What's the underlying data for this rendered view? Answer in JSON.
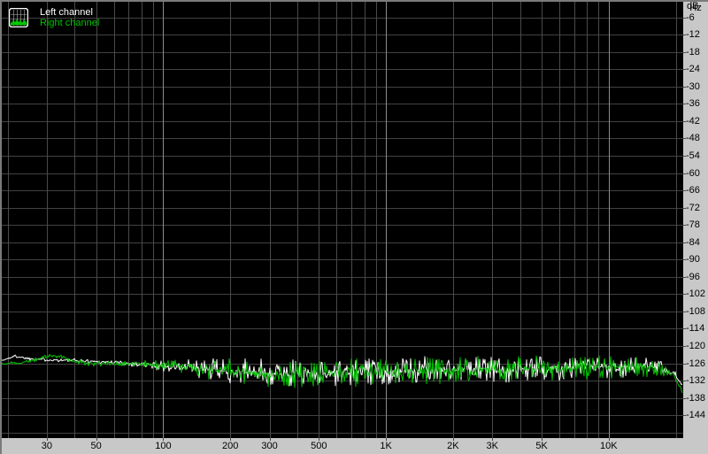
{
  "legend": {
    "items": [
      {
        "label": "Left channel",
        "color": "#ffffff"
      },
      {
        "label": "Right channel",
        "color": "#00c000"
      }
    ]
  },
  "colors": {
    "background": "#000000",
    "panel": "#c8c8c8",
    "grid_horizontal": "#424242",
    "grid_minor_vertical": "#4a4a4a",
    "grid_major_vertical": "#8c8c8c",
    "left_trace": "#ffffff",
    "right_trace": "#00c000",
    "axis_text": "#000000",
    "frame_border": "#7b7b7b"
  },
  "chart_data": {
    "type": "line",
    "title": "",
    "x_scale": "log",
    "x_unit": "Hz",
    "y_unit": "dB",
    "x_range": [
      18.5,
      21600
    ],
    "y_range": [
      -150,
      0
    ],
    "grid_on": true,
    "legend_position": "top-left",
    "y_tick_step": 6,
    "y_tick_labels": [
      -6,
      -12,
      -18,
      -24,
      -30,
      -36,
      -42,
      -48,
      -54,
      -60,
      -66,
      -72,
      -78,
      -84,
      -90,
      -96,
      -102,
      -108,
      -114,
      -120,
      -126,
      -132,
      -138,
      -144
    ],
    "x_tick_labels": [
      {
        "f": 30,
        "label": "30"
      },
      {
        "f": 50,
        "label": "50"
      },
      {
        "f": 100,
        "label": "100"
      },
      {
        "f": 200,
        "label": "200"
      },
      {
        "f": 300,
        "label": "300"
      },
      {
        "f": 500,
        "label": "500"
      },
      {
        "f": 1000,
        "label": "1K"
      },
      {
        "f": 2000,
        "label": "2K"
      },
      {
        "f": 3000,
        "label": "3K"
      },
      {
        "f": 5000,
        "label": "5K"
      },
      {
        "f": 10000,
        "label": "10K"
      }
    ],
    "grid_freqs_minor": [
      20,
      30,
      40,
      50,
      60,
      70,
      80,
      90,
      200,
      300,
      400,
      500,
      600,
      700,
      800,
      900,
      2000,
      3000,
      4000,
      5000,
      6000,
      7000,
      8000,
      9000,
      20000
    ],
    "grid_freqs_major": [
      100,
      1000,
      10000
    ],
    "series": [
      {
        "name": "Left channel",
        "color": "#ffffff",
        "seed": 1337,
        "noise_model": "envelope points are [frequency_hz, level_db, jitter_db]",
        "envelope": [
          [
            18.5,
            -125.3,
            0.35
          ],
          [
            21.5,
            -123.5,
            0.35
          ],
          [
            25,
            -124.3,
            0.4
          ],
          [
            30,
            -124.7,
            0.45
          ],
          [
            36,
            -124.9,
            0.5
          ],
          [
            45,
            -125.2,
            0.5
          ],
          [
            55,
            -125.5,
            0.55
          ],
          [
            70,
            -126.0,
            0.65
          ],
          [
            88,
            -126.6,
            0.9
          ],
          [
            110,
            -127.2,
            1.4
          ],
          [
            140,
            -127.9,
            2.3
          ],
          [
            200,
            -128.7,
            2.8
          ],
          [
            320,
            -129.4,
            3.0
          ],
          [
            550,
            -129.2,
            3.0
          ],
          [
            900,
            -128.8,
            3.0
          ],
          [
            1400,
            -128.5,
            3.0
          ],
          [
            2200,
            -128.0,
            3.0
          ],
          [
            3500,
            -127.9,
            2.9
          ],
          [
            5500,
            -127.6,
            2.8
          ],
          [
            8500,
            -127.3,
            2.6
          ],
          [
            12500,
            -127.1,
            2.4
          ],
          [
            16500,
            -127.6,
            1.9
          ],
          [
            19000,
            -129.2,
            1.3
          ],
          [
            20500,
            -131.5,
            0.9
          ],
          [
            21600,
            -134.0,
            0.6
          ]
        ]
      },
      {
        "name": "Right channel",
        "color": "#00c000",
        "seed": 4242,
        "noise_model": "envelope points are [frequency_hz, level_db, jitter_db]",
        "envelope": [
          [
            18.5,
            -126.3,
            0.35
          ],
          [
            23,
            -125.7,
            0.4
          ],
          [
            27,
            -124.7,
            0.45
          ],
          [
            31,
            -123.4,
            0.45
          ],
          [
            35,
            -123.9,
            0.5
          ],
          [
            40,
            -125.3,
            0.5
          ],
          [
            48,
            -126.2,
            0.55
          ],
          [
            60,
            -126.0,
            0.6
          ],
          [
            75,
            -125.9,
            0.7
          ],
          [
            92,
            -126.4,
            0.95
          ],
          [
            115,
            -126.9,
            1.5
          ],
          [
            145,
            -127.7,
            2.3
          ],
          [
            210,
            -128.9,
            2.9
          ],
          [
            330,
            -129.6,
            3.1
          ],
          [
            560,
            -129.3,
            3.1
          ],
          [
            950,
            -128.9,
            3.0
          ],
          [
            1500,
            -128.5,
            3.0
          ],
          [
            2400,
            -128.2,
            3.0
          ],
          [
            3800,
            -128.0,
            2.9
          ],
          [
            6000,
            -127.7,
            2.8
          ],
          [
            9000,
            -127.4,
            2.6
          ],
          [
            13000,
            -127.2,
            2.3
          ],
          [
            16000,
            -127.7,
            1.8
          ],
          [
            18500,
            -128.9,
            1.3
          ],
          [
            20000,
            -131.3,
            0.9
          ],
          [
            21200,
            -135.5,
            0.6
          ],
          [
            21600,
            -137.0,
            0.4
          ]
        ]
      }
    ]
  }
}
